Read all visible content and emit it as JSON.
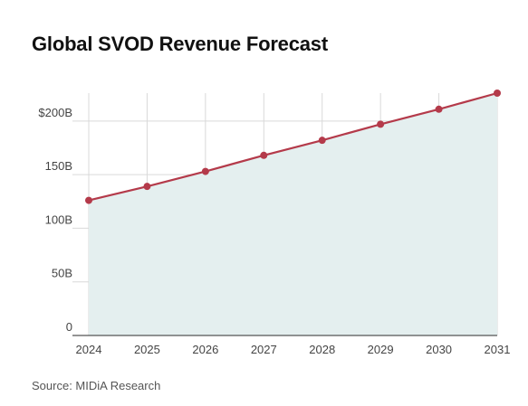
{
  "title": "Global SVOD Revenue Forecast",
  "source": "Source: MIDiA Research",
  "colors": {
    "line": "#b43a4a",
    "area": "#e4efef",
    "grid": "#d9d9d9",
    "axis": "#555555"
  },
  "chart_data": {
    "type": "area",
    "title": "Global SVOD Revenue Forecast",
    "xlabel": "",
    "ylabel": "",
    "x": [
      "2024",
      "2025",
      "2026",
      "2027",
      "2028",
      "2029",
      "2030",
      "2031"
    ],
    "series": [
      {
        "values": [
          126,
          139,
          153,
          168,
          182,
          197,
          211,
          226
        ]
      }
    ],
    "ylim": [
      0,
      226
    ],
    "yticks": [
      0,
      50,
      100,
      150,
      200
    ],
    "ytick_labels": [
      "0",
      "50B",
      "100B",
      "150B",
      "$200B"
    ],
    "grid": true,
    "markers": true
  }
}
